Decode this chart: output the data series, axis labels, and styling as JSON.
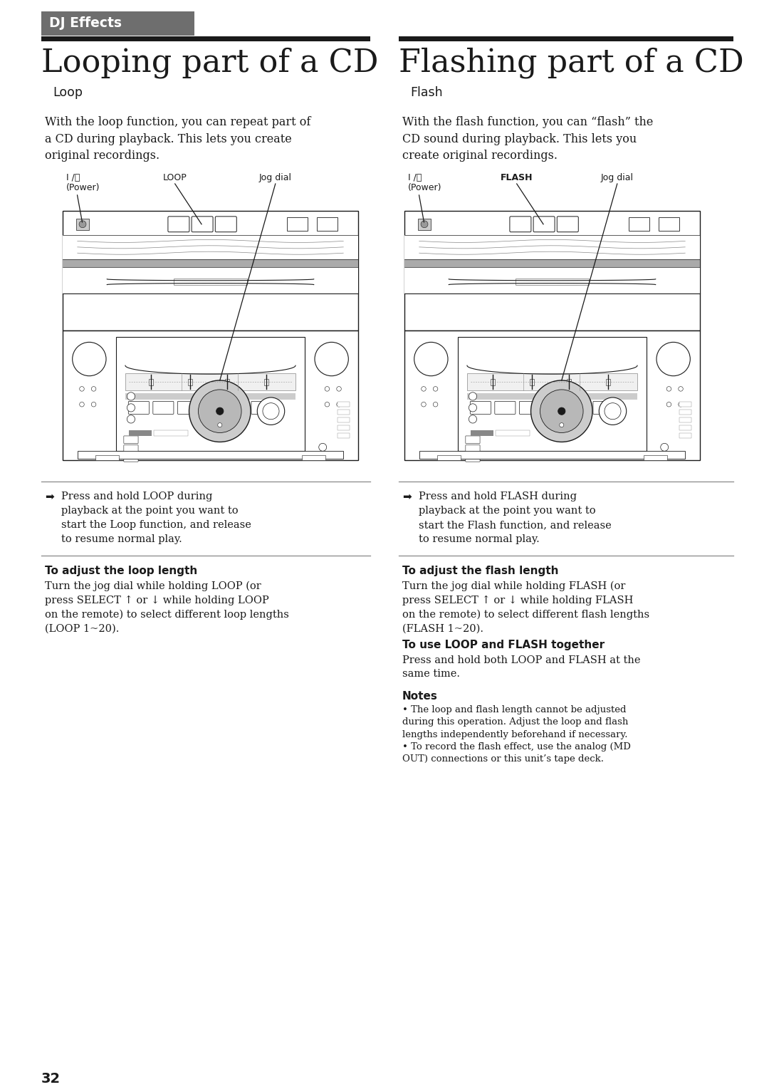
{
  "page_number": "32",
  "bg_color": "#ffffff",
  "tab_bg": "#6e6e6e",
  "tab_text": "DJ Effects",
  "tab_text_color": "#ffffff",
  "header_bar_color": "#1a1a1a",
  "left_title": "Looping part of a CD",
  "right_title": "Flashing part of a CD",
  "left_subtitle": "Loop",
  "right_subtitle": "Flash",
  "left_body": "With the loop function, you can repeat part of\na CD during playback. This lets you create\noriginal recordings.",
  "right_body": "With the flash function, you can “flash” the\nCD sound during playback. This lets you\ncreate original recordings.",
  "left_arrow_text": "Press and hold LOOP during\nplayback at the point you want to\nstart the Loop function, and release\nto resume normal play.",
  "right_arrow_text": "Press and hold FLASH during\nplayback at the point you want to\nstart the Flash function, and release\nto resume normal play.",
  "left_section1_title": "To adjust the loop length",
  "left_section1_body": "Turn the jog dial while holding LOOP (or\npress SELECT ↑ or ↓ while holding LOOP\non the remote) to select different loop lengths\n(LOOP 1~20).",
  "right_section1_title": "To adjust the flash length",
  "right_section1_body": "Turn the jog dial while holding FLASH (or\npress SELECT ↑ or ↓ while holding FLASH\non the remote) to select different flash lengths\n(FLASH 1~20).",
  "right_section2_title": "To use LOOP and FLASH together",
  "right_section2_body": "Press and hold both LOOP and FLASH at the\nsame time.",
  "notes_title": "Notes",
  "note1": "The loop and flash length cannot be adjusted\nduring this operation. Adjust the loop and flash\nlengths independently beforehand if necessary.",
  "note2": "To record the flash effect, use the analog (MD\nOUT) connections or this unit’s tape deck."
}
